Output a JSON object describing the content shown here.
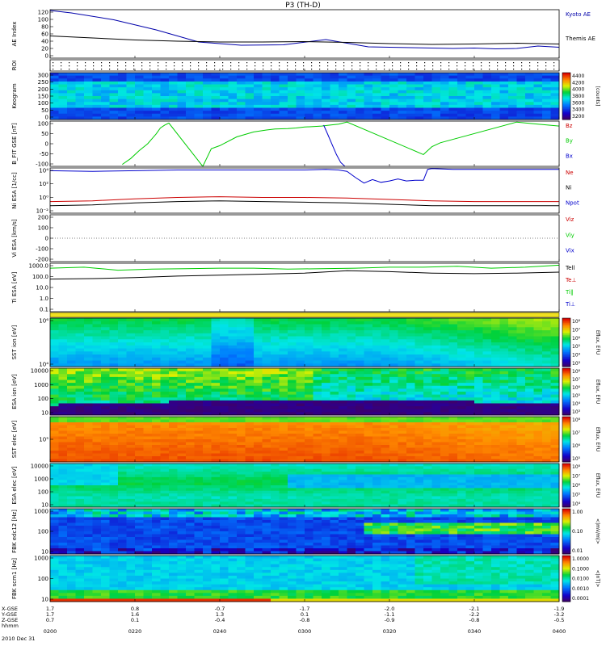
{
  "title": "P3 (TH-D)",
  "x_axis": {
    "ticks": [
      "0200",
      "0220",
      "0240",
      "0300",
      "0320",
      "0340",
      "0400"
    ],
    "date": "2010 Dec 31",
    "coord_rows": [
      {
        "label": "X-GSE",
        "values": [
          "1.7",
          "0.8",
          "-0.7",
          "-1.7",
          "-2.0",
          "-2.1",
          "-1.9"
        ]
      },
      {
        "label": "Y-GSE",
        "values": [
          "1.7",
          "1.6",
          "1.3",
          "0.1",
          "-1.1",
          "-2.2",
          "-3.2"
        ]
      },
      {
        "label": "Z-GSE",
        "values": [
          "0.7",
          "0.1",
          "-0.4",
          "-0.8",
          "-0.9",
          "-0.8",
          "-0.5"
        ]
      },
      {
        "label": "hhmm",
        "values": []
      }
    ]
  },
  "chart_data": [
    {
      "type": "line",
      "ylabel": "AE Index",
      "yticks": [
        "120",
        "100",
        "80",
        "60",
        "40",
        "20",
        "0"
      ],
      "ylim": [
        0,
        120
      ],
      "series": [
        {
          "name": "Kyoto AE",
          "color": "#0000aa",
          "x": [
            0,
            5,
            15,
            25,
            35,
            45,
            55,
            65,
            75,
            85,
            95,
            100,
            105,
            110,
            115,
            120
          ],
          "y": [
            118,
            112,
            95,
            70,
            40,
            32,
            33,
            46,
            28,
            26,
            24,
            25,
            23,
            24,
            30,
            27
          ]
        },
        {
          "name": "Themis AE",
          "color": "#000000",
          "x": [
            0,
            10,
            20,
            30,
            40,
            50,
            60,
            70,
            80,
            90,
            100,
            110,
            120
          ],
          "y": [
            55,
            50,
            45,
            42,
            40,
            40,
            41,
            39,
            36,
            34,
            35,
            37,
            35
          ]
        }
      ]
    },
    {
      "type": "heatmap",
      "ylabel": "ROI",
      "yticks": [],
      "ylim": [
        0,
        1
      ]
    },
    {
      "type": "heatmap",
      "ylabel": "Keogram",
      "yticks": [
        "300",
        "250",
        "200",
        "150",
        "100",
        "50",
        "0"
      ],
      "ylim": [
        0,
        300
      ],
      "colorbar": {
        "ticks": [
          "4400",
          "4200",
          "4000",
          "3800",
          "3600",
          "3400",
          "3200"
        ],
        "label": "[counts]"
      }
    },
    {
      "type": "line",
      "ylabel": "B_FIT GSE [nT]",
      "yticks": [
        "100",
        "50",
        "0",
        "-50",
        "-100"
      ],
      "ylim": [
        -120,
        110
      ],
      "series": [
        {
          "name": "Bz",
          "color": "#cc0000",
          "x": [],
          "y": []
        },
        {
          "name": "By",
          "color": "#00cc00",
          "x": [
            17,
            19,
            21,
            23,
            24,
            25,
            26,
            27,
            28,
            36,
            38,
            40,
            44,
            48,
            51,
            53,
            56,
            58,
            60,
            62,
            64,
            66,
            68,
            70,
            88,
            89,
            90,
            91,
            92,
            110,
            115,
            120
          ],
          "y": [
            -110,
            -80,
            -40,
            -5,
            20,
            45,
            75,
            90,
            100,
            -120,
            -30,
            -15,
            30,
            55,
            65,
            70,
            72,
            75,
            80,
            82,
            85,
            90,
            95,
            105,
            -60,
            -40,
            -20,
            -10,
            0,
            105,
            95,
            85
          ]
        },
        {
          "name": "Bx",
          "color": "#0000cc",
          "x": [
            64.5,
            65.5,
            66.5,
            67.5,
            68.5,
            69.5
          ],
          "y": [
            90,
            40,
            -10,
            -60,
            -100,
            -120
          ]
        }
      ]
    },
    {
      "type": "line",
      "ylabel": "Ni ESA [1/cc]",
      "yticks": [
        "10⁴",
        "10²",
        "10⁰",
        "10⁻²"
      ],
      "ylim": [
        -2,
        4.6
      ],
      "series": [
        {
          "name": "Ne",
          "color": "#cc0000",
          "x": [
            0,
            10,
            20,
            30,
            40,
            50,
            60,
            70,
            80,
            90,
            100,
            110,
            120
          ],
          "y": [
            -0.3,
            -0.2,
            0.1,
            0.3,
            0.4,
            0.3,
            0.3,
            0.2,
            0.0,
            -0.2,
            -0.3,
            -0.3,
            -0.3
          ]
        },
        {
          "name": "Ni",
          "color": "#000000",
          "x": [
            0,
            10,
            20,
            30,
            40,
            50,
            60,
            70,
            80,
            90,
            100,
            110,
            120
          ],
          "y": [
            -0.9,
            -0.8,
            -0.5,
            -0.3,
            -0.2,
            -0.3,
            -0.4,
            -0.5,
            -0.7,
            -0.9,
            -0.9,
            -0.9,
            -0.9
          ]
        },
        {
          "name": "Npot",
          "color": "#0000cc",
          "x": [
            0,
            10,
            20,
            30,
            40,
            50,
            60,
            65,
            68,
            70,
            72,
            74,
            76,
            78,
            80,
            82,
            84,
            86,
            88,
            89,
            90,
            95,
            100,
            110,
            120
          ],
          "y": [
            4.2,
            4.1,
            4.2,
            4.3,
            4.3,
            4.3,
            4.3,
            4.4,
            4.3,
            4.1,
            3.2,
            2.4,
            2.9,
            2.5,
            2.7,
            3.0,
            2.7,
            2.8,
            2.8,
            4.4,
            4.5,
            4.4,
            4.4,
            4.4,
            4.4
          ]
        }
      ]
    },
    {
      "type": "line",
      "ylabel": "Vi ESA [km/s]",
      "yticks": [
        "200",
        "100",
        "0",
        "-100",
        "-200"
      ],
      "ylim": [
        -240,
        240
      ],
      "series": [
        {
          "name": "Viz",
          "color": "#cc0000",
          "x": [],
          "y": []
        },
        {
          "name": "Viy",
          "color": "#00cc00",
          "x": [],
          "y": []
        },
        {
          "name": "Vix",
          "color": "#0000cc",
          "x": [],
          "y": []
        }
      ],
      "zero_line": true
    },
    {
      "type": "line",
      "ylabel": "Ti ESA [eV]",
      "yticks": [
        "1000.0",
        "100.0",
        "10.0",
        "1.0",
        "0.1"
      ],
      "ylim": [
        -1.3,
        3.6
      ],
      "series": [
        {
          "name": "Tell",
          "color": "#000000",
          "x": [
            0,
            10,
            20,
            30,
            40,
            50,
            60,
            70,
            80,
            90,
            100,
            110,
            120
          ],
          "y": [
            2.0,
            2.05,
            2.15,
            2.3,
            2.4,
            2.5,
            2.6,
            2.85,
            2.75,
            2.6,
            2.55,
            2.6,
            2.7
          ]
        },
        {
          "name": "Te⊥",
          "color": "#cc0000",
          "x": [],
          "y": []
        },
        {
          "name": "Ti‖",
          "color": "#00cc00",
          "x": [
            0,
            8,
            16,
            24,
            32,
            40,
            48,
            56,
            64,
            72,
            80,
            88,
            96,
            104,
            112,
            120
          ],
          "y": [
            3.1,
            3.2,
            2.9,
            3.0,
            3.05,
            3.1,
            3.1,
            3.0,
            3.05,
            3.1,
            3.2,
            3.2,
            3.3,
            3.1,
            3.2,
            3.4
          ]
        },
        {
          "name": "Ti⊥",
          "color": "#0000cc",
          "x": [],
          "y": []
        }
      ]
    },
    {
      "type": "heatmap",
      "ylabel": "SST ion [eV]",
      "yticks": [
        "10⁶",
        "10⁴"
      ],
      "ylim": [
        3,
        7
      ],
      "colorbar": {
        "ticks": [
          "10⁸",
          "10⁷",
          "10⁶",
          "10⁵",
          "10⁴",
          "10³"
        ],
        "label": "Eflux, EFU"
      }
    },
    {
      "type": "heatmap",
      "ylabel": "ESA ion [eV]",
      "yticks": [
        "10000",
        "1000",
        "100",
        "10"
      ],
      "ylim": [
        1,
        4.2
      ],
      "colorbar": {
        "ticks": [
          "10⁸",
          "10⁷",
          "10⁶",
          "10⁵",
          "10⁴",
          "10³"
        ],
        "label": "Eflux, EFU"
      }
    },
    {
      "type": "heatmap",
      "ylabel": "SST elec [eV]",
      "yticks": [
        "10⁵"
      ],
      "ylim": [
        4,
        6
      ],
      "colorbar": {
        "ticks": [
          "10⁸",
          "10⁷",
          "10⁶",
          "10⁵"
        ],
        "label": "Eflux, EFU"
      }
    },
    {
      "type": "heatmap",
      "ylabel": "ESA elec [eV]",
      "yticks": [
        "10000",
        "1000",
        "100",
        "10"
      ],
      "ylim": [
        1,
        4.2
      ],
      "colorbar": {
        "ticks": [
          "10⁸",
          "10⁷",
          "10⁶",
          "10⁵",
          "10⁴"
        ],
        "label": "Eflux, EFU"
      }
    },
    {
      "type": "heatmap",
      "ylabel": "FBK edc12 [Hz]",
      "yticks": [
        "1000",
        "100",
        "10"
      ],
      "ylim": [
        0.6,
        3.3
      ],
      "colorbar": {
        "ticks": [
          "1.00",
          "0.10",
          "0.01"
        ],
        "label": "<|mV/m|>"
      }
    },
    {
      "type": "heatmap",
      "ylabel": "FBK scm1 [Hz]",
      "yticks": [
        "1000",
        "100",
        "10"
      ],
      "ylim": [
        0.6,
        3.3
      ],
      "colorbar": {
        "ticks": [
          "1.0000",
          "0.1000",
          "0.0100",
          "0.0010",
          "0.0001"
        ],
        "label": "<|nT|>"
      }
    }
  ]
}
